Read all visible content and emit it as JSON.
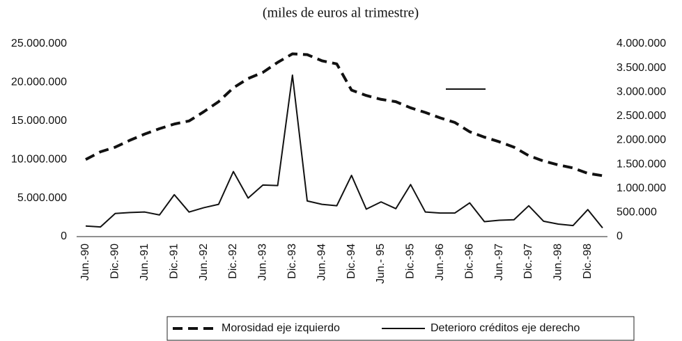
{
  "chart_data": {
    "type": "line",
    "title": "(miles de euros al trimestre)",
    "categories": [
      "Jun.-90",
      null,
      "Dic.-90",
      null,
      "Jun.-91",
      null,
      "Dic.-91",
      null,
      "Jun.-92",
      null,
      "Dic.-92",
      null,
      "Jun.-93",
      null,
      "Dic.-93",
      null,
      "Jun.-94",
      null,
      "Dic.-94",
      null,
      "Jun.- 95",
      null,
      "Dic.-95",
      null,
      "Jun.-96",
      null,
      "Dic.-96",
      null,
      "Jun.-97",
      null,
      "Dic.-97",
      null,
      "Jun.-98",
      null,
      "Dic.-98",
      null
    ],
    "series": [
      {
        "name": "Morosidad eje izquierdo",
        "color": "#111111",
        "dashed": true,
        "values": [
          10000000,
          11000000,
          11600000,
          12500000,
          13300000,
          14000000,
          14600000,
          15000000,
          16200000,
          17500000,
          19300000,
          20500000,
          21300000,
          22600000,
          23700000,
          23600000,
          22800000,
          22400000,
          19000000,
          18300000,
          17800000,
          17500000,
          16700000,
          16100000,
          15400000,
          14800000,
          13600000,
          12900000,
          12300000,
          11600000,
          10500000,
          9800000,
          9300000,
          8900000,
          8200000,
          7900000
        ]
      },
      {
        "name": "Deterioro créditos eje derecho",
        "color": "#111111",
        "dashed": false,
        "axis": "y2",
        "values": [
          220000,
          200000,
          480000,
          500000,
          510000,
          450000,
          870000,
          510000,
          600000,
          670000,
          1350000,
          800000,
          1070000,
          1060000,
          3350000,
          740000,
          670000,
          640000,
          1270000,
          570000,
          720000,
          580000,
          1080000,
          510000,
          490000,
          490000,
          700000,
          310000,
          340000,
          350000,
          640000,
          320000,
          260000,
          230000,
          560000,
          180000
        ]
      }
    ],
    "ylim": [
      0,
      25000000
    ],
    "yticks": [
      0,
      {
        "value": 5000000,
        "label": "5.000.000"
      },
      {
        "value": 10000000,
        "label": "10.000.000"
      },
      {
        "value": 15000000,
        "label": "15.000.000"
      },
      {
        "value": 20000000,
        "label": "20.000.000"
      },
      {
        "value": 25000000,
        "label": "25.000.000"
      }
    ],
    "y2lim": [
      0,
      4000000
    ],
    "y2ticks": [
      0,
      {
        "value": 500000,
        "label": "500.000"
      },
      {
        "value": 1000000,
        "label": "1.000.000"
      },
      {
        "value": 1500000,
        "label": "1.500.000"
      },
      {
        "value": 2000000,
        "label": "2.000.000"
      },
      {
        "value": 2500000,
        "label": "2.500.000"
      },
      {
        "value": 3000000,
        "label": "3.000.000"
      },
      {
        "value": 3500000,
        "label": "3.500.000"
      },
      {
        "value": 4000000,
        "label": "4.000.000"
      }
    ],
    "grid": false,
    "legend": "bottom"
  }
}
